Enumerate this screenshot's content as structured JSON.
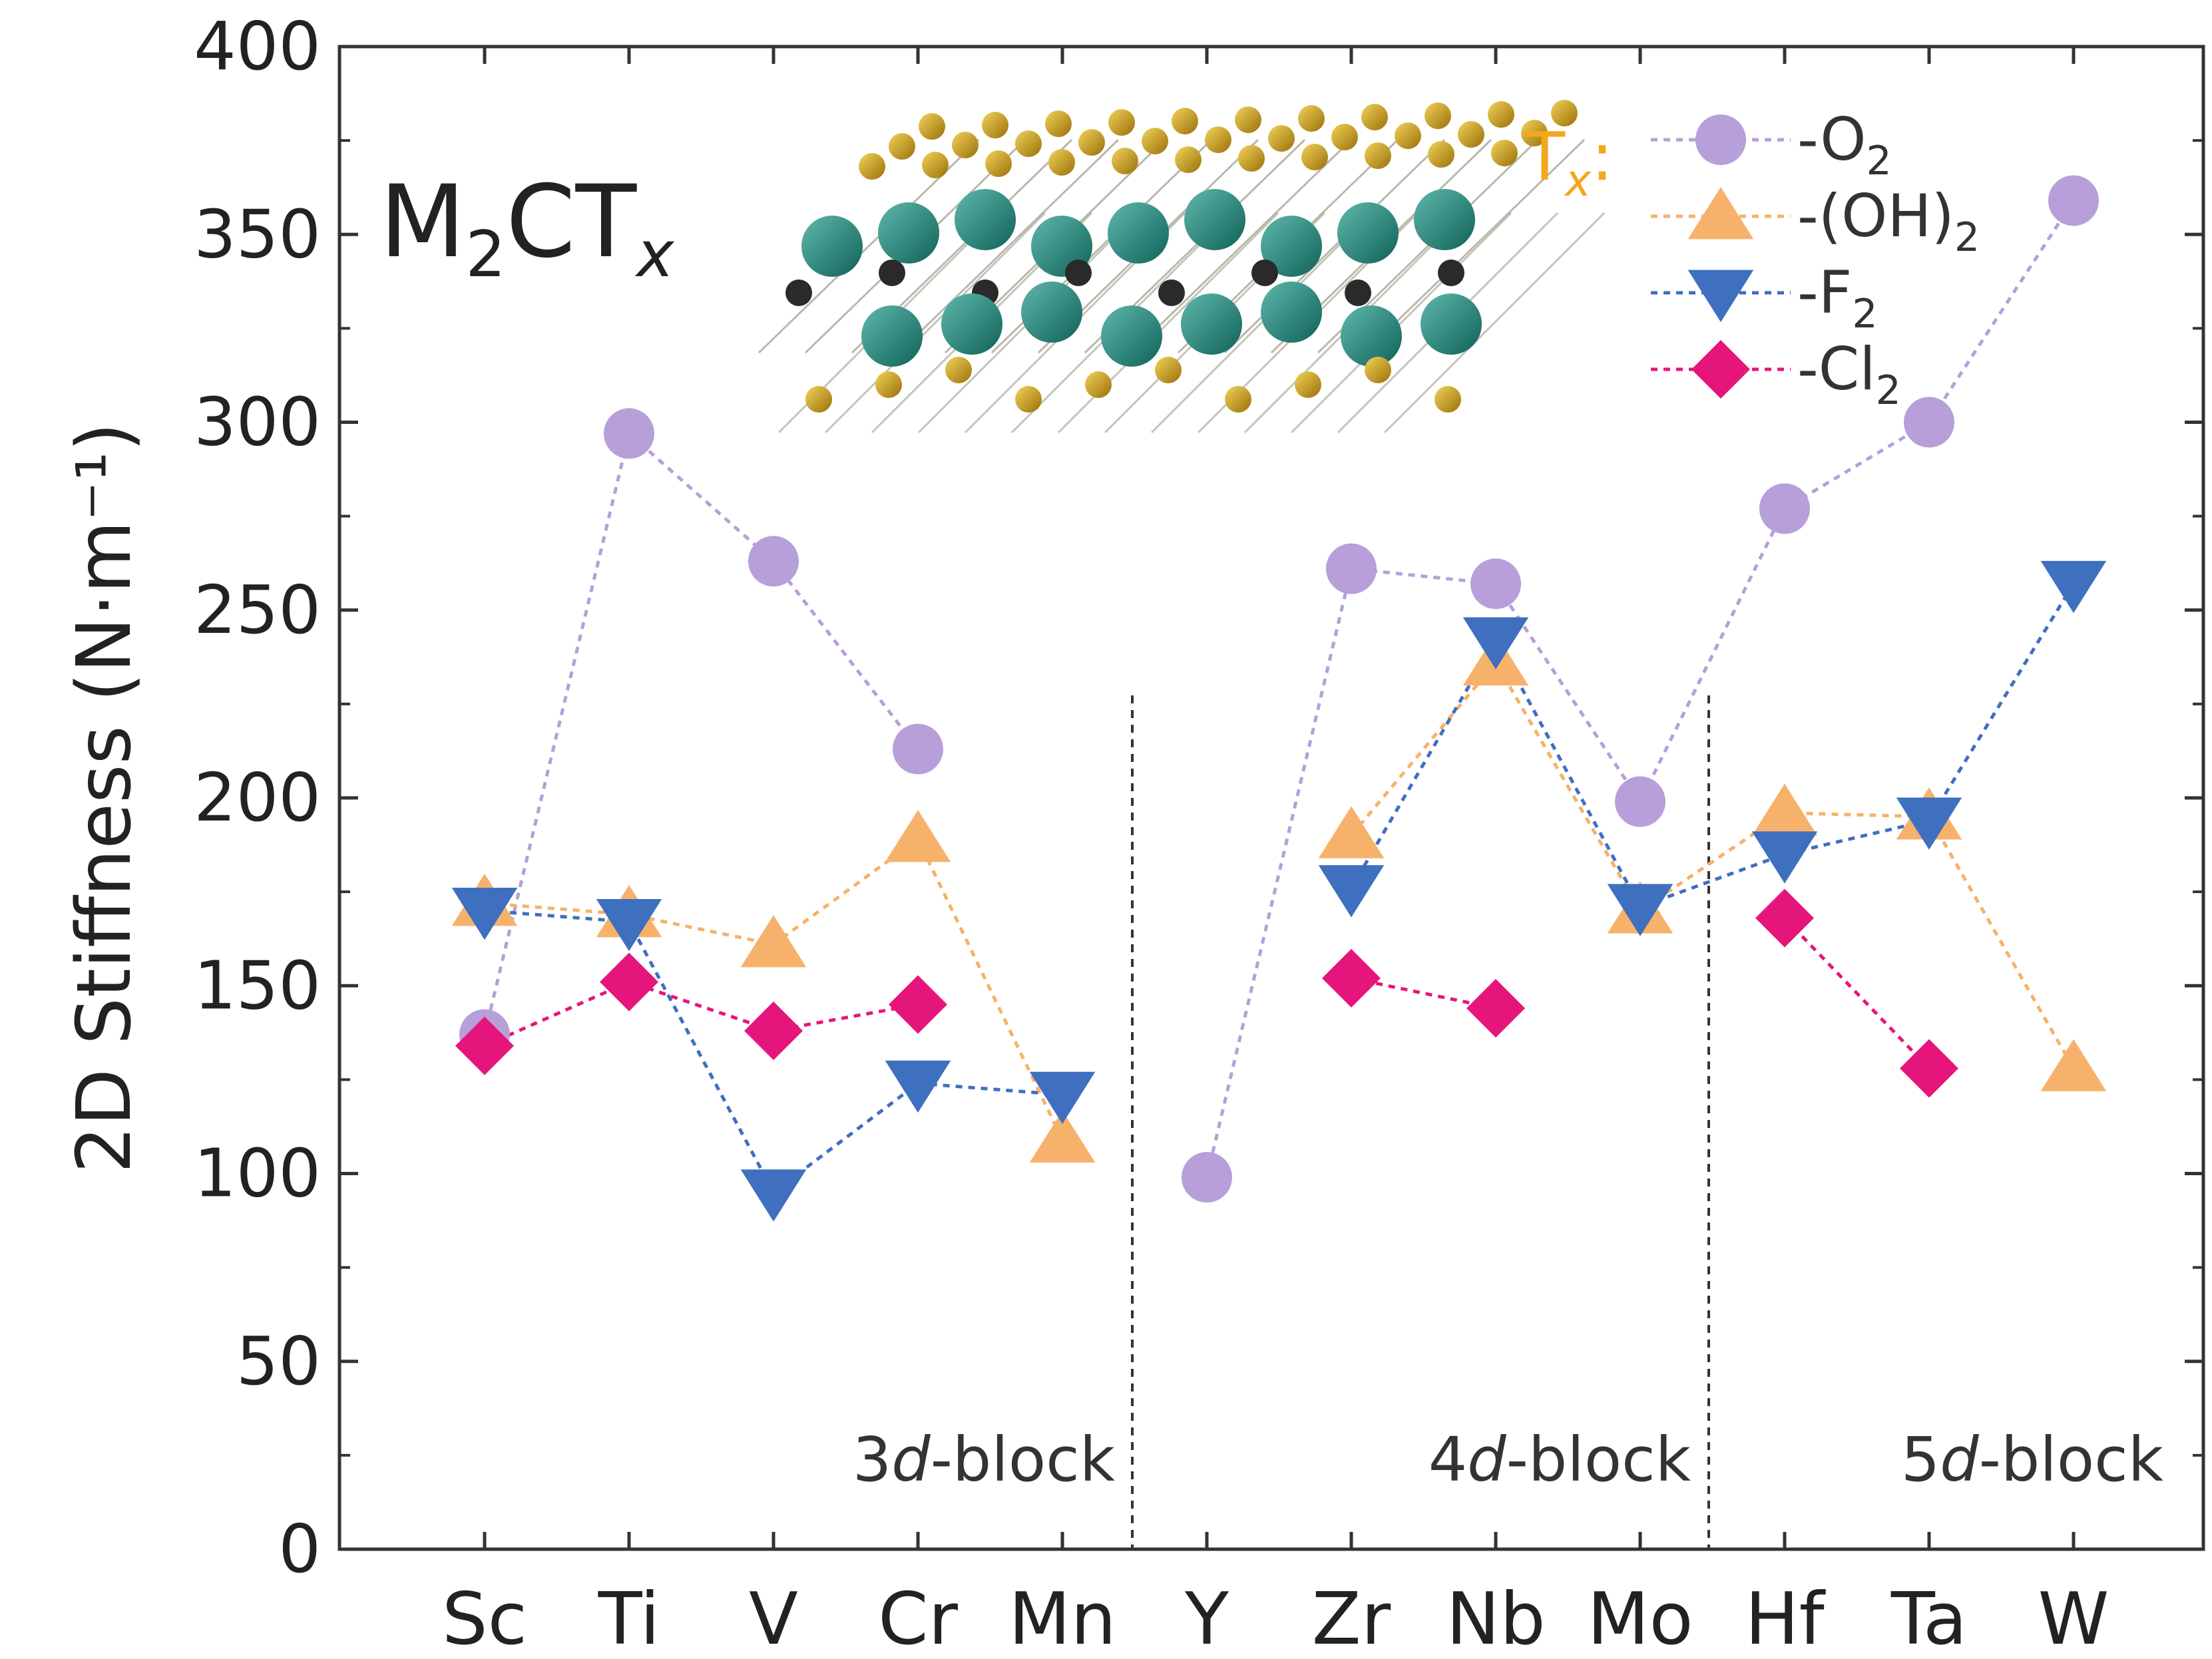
{
  "chart_data": {
    "type": "scatter",
    "ylabel": "2D Stiffness (N·m⁻¹)",
    "ylim": [
      0,
      400
    ],
    "yticks": [
      0,
      50,
      100,
      150,
      200,
      250,
      300,
      350,
      400
    ],
    "categories": [
      "Sc",
      "Ti",
      "V",
      "Cr",
      "Mn",
      "Y",
      "Zr",
      "Nb",
      "Mo",
      "Hf",
      "Ta",
      "W"
    ],
    "groups": [
      {
        "label_num": "3",
        "label_d": "d",
        "label_rest": "-block",
        "categories": [
          "Sc",
          "Ti",
          "V",
          "Cr",
          "Mn"
        ]
      },
      {
        "label_num": "4",
        "label_d": "d",
        "label_rest": "-block",
        "categories": [
          "Y",
          "Zr",
          "Nb",
          "Mo"
        ]
      },
      {
        "label_num": "5",
        "label_d": "d",
        "label_rest": "-block",
        "categories": [
          "Hf",
          "Ta",
          "W"
        ]
      }
    ],
    "compound": {
      "main": "M",
      "sub1": "2",
      "mid": "CT",
      "sub2": "x"
    },
    "tx_label": {
      "main": "T",
      "sub": "x",
      "suffix": ":"
    },
    "series": [
      {
        "name": "-O2",
        "display": "-O",
        "sub": "2",
        "marker": "circle",
        "color": "#b79fd9",
        "line_color": "#b79fd9",
        "values": [
          137,
          297,
          263,
          213,
          null,
          99,
          261,
          257,
          199,
          277,
          300,
          359
        ]
      },
      {
        "name": "-(OH)2",
        "display": "-(OH)",
        "sub": "2",
        "marker": "triangle-up",
        "color": "#f6b26b",
        "line_color": "#f6b26b",
        "values": [
          172,
          169,
          161,
          189,
          109,
          null,
          190,
          236,
          170,
          196,
          195,
          128
        ]
      },
      {
        "name": "-F2",
        "display": "-F",
        "sub": "2",
        "marker": "triangle-down",
        "color": "#3f6fbf",
        "line_color": "#3f6fbf",
        "values": [
          170,
          167,
          95,
          124,
          121,
          null,
          176,
          242,
          171,
          185,
          194,
          257
        ]
      },
      {
        "name": "-Cl2",
        "display": "-Cl",
        "sub": "2",
        "marker": "diamond",
        "color": "#e6157b",
        "line_color": "#e6157b",
        "values": [
          134,
          151,
          138,
          145,
          null,
          null,
          152,
          144,
          null,
          168,
          128,
          null
        ]
      }
    ]
  }
}
